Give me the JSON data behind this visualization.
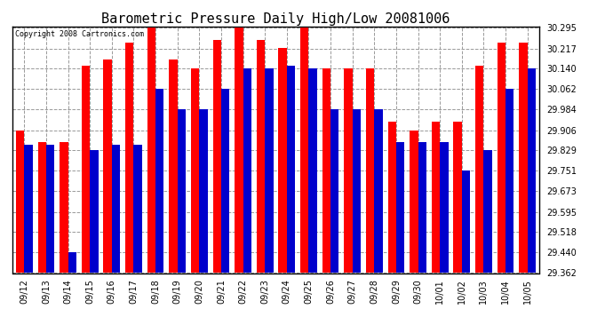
{
  "title": "Barometric Pressure Daily High/Low 20081006",
  "copyright": "Copyright 2008 Cartronics.com",
  "dates": [
    "09/12",
    "09/13",
    "09/14",
    "09/15",
    "09/16",
    "09/17",
    "09/18",
    "09/19",
    "09/20",
    "09/21",
    "09/22",
    "09/23",
    "09/24",
    "09/25",
    "09/26",
    "09/27",
    "09/28",
    "09/29",
    "09/30",
    "10/01",
    "10/02",
    "10/03",
    "10/04",
    "10/05"
  ],
  "highs": [
    29.906,
    29.862,
    29.862,
    30.15,
    30.175,
    30.24,
    30.295,
    30.175,
    30.14,
    30.25,
    30.295,
    30.25,
    30.22,
    30.295,
    30.14,
    30.14,
    30.14,
    29.94,
    29.906,
    29.94,
    29.94,
    30.15,
    30.24,
    30.24
  ],
  "lows": [
    29.851,
    29.851,
    29.44,
    29.829,
    29.851,
    29.851,
    30.062,
    29.984,
    29.984,
    30.062,
    30.14,
    30.14,
    30.15,
    30.14,
    29.984,
    29.984,
    29.984,
    29.862,
    29.862,
    29.862,
    29.751,
    29.829,
    30.062,
    30.14
  ],
  "ymin": 29.362,
  "ymax": 30.295,
  "yticks": [
    30.295,
    30.217,
    30.14,
    30.062,
    29.984,
    29.906,
    29.829,
    29.751,
    29.673,
    29.595,
    29.518,
    29.44,
    29.362
  ],
  "bar_width": 0.38,
  "high_color": "#FF0000",
  "low_color": "#0000CC",
  "bg_color": "#FFFFFF",
  "grid_color": "#999999",
  "title_fontsize": 11,
  "tick_fontsize": 7,
  "copyright_fontsize": 6
}
